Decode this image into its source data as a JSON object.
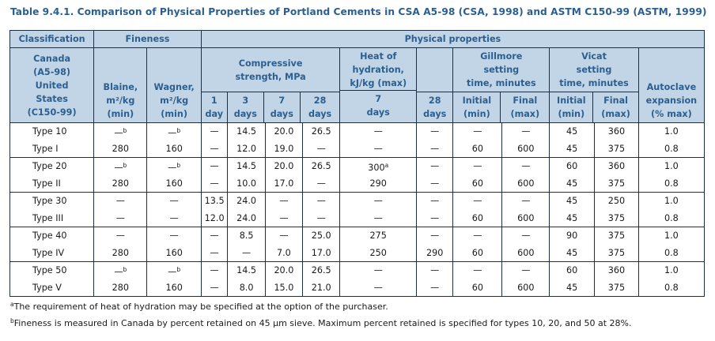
{
  "caption": "Table 9.4.1.  Comparison of Physical Properties of Portland Cements in CSA A5-98 (CSA, 1998) and ASTM C150-99 (ASTM, 1999)",
  "headers": {
    "classification": "Classification",
    "fineness": "Fineness",
    "physical_properties": "Physical properties",
    "canada": "Canada",
    "a598": "(A5-98)",
    "us": "United",
    "states": "States",
    "c15099": "(C150-99)",
    "blaine1": "Blaine,",
    "blaine2": "m²/kg",
    "blaine3": "(min)",
    "wagner1": "Wagner,",
    "wagner2": "m²/kg",
    "wagner3": "(min)",
    "comp1": "Compressive",
    "comp2": "strength, MPa",
    "d1n": "1",
    "d1u": "day",
    "d3n": "3",
    "d3u": "days",
    "d7n": "7",
    "d7u": "days",
    "d28n": "28",
    "d28u": "days",
    "heat1": "Heat of",
    "heat2": "hydration,",
    "heat3": "kJ/kg (max)",
    "heat7n": "7",
    "heat7u": "days",
    "heat28n": "28",
    "heat28u": "days",
    "gill1": "Gillmore",
    "gill2": "setting",
    "gill3": "time, minutes",
    "gill_initial": "Initial",
    "gill_initial_u": "(min)",
    "gill_final": "Final",
    "gill_final_u": "(max)",
    "vicat1": "Vicat",
    "vicat2": "setting",
    "vicat3": "time, minutes",
    "vicat_initial": "Initial",
    "vicat_initial_u": "(min)",
    "vicat_final": "Final",
    "vicat_final_u": "(max)",
    "auto1": "Autoclave",
    "auto2": "expansion",
    "auto3": "(% max)"
  },
  "rows": [
    {
      "type": "Type 10",
      "blaine": "—",
      "blaine_sup": "b",
      "wagner": "—",
      "wagner_sup": "b",
      "c1": "—",
      "c3": "14.5",
      "c7": "20.0",
      "c28": "26.5",
      "h7": "—",
      "h7_sup": "",
      "h28": "—",
      "gi": "—",
      "gf": "—",
      "vi": "45",
      "vf": "360",
      "ae": "1.0"
    },
    {
      "type": "Type I",
      "blaine": "280",
      "blaine_sup": "",
      "wagner": "160",
      "wagner_sup": "",
      "c1": "—",
      "c3": "12.0",
      "c7": "19.0",
      "c28": "—",
      "h7": "—",
      "h7_sup": "",
      "h28": "—",
      "gi": "60",
      "gf": "600",
      "vi": "45",
      "vf": "375",
      "ae": "0.8"
    },
    {
      "type": "Type 20",
      "blaine": "—",
      "blaine_sup": "b",
      "wagner": "—",
      "wagner_sup": "b",
      "c1": "—",
      "c3": "14.5",
      "c7": "20.0",
      "c28": "26.5",
      "h7": "300",
      "h7_sup": "a",
      "h28": "—",
      "gi": "—",
      "gf": "—",
      "vi": "60",
      "vf": "360",
      "ae": "1.0"
    },
    {
      "type": "Type II",
      "blaine": "280",
      "blaine_sup": "",
      "wagner": "160",
      "wagner_sup": "",
      "c1": "—",
      "c3": "10.0",
      "c7": "17.0",
      "c28": "—",
      "h7": "290",
      "h7_sup": "",
      "h28": "—",
      "gi": "60",
      "gf": "600",
      "vi": "45",
      "vf": "375",
      "ae": "0.8"
    },
    {
      "type": "Type 30",
      "blaine": "—",
      "blaine_sup": "",
      "wagner": "—",
      "wagner_sup": "",
      "c1": "13.5",
      "c3": "24.0",
      "c7": "—",
      "c28": "—",
      "h7": "—",
      "h7_sup": "",
      "h28": "—",
      "gi": "—",
      "gf": "—",
      "vi": "45",
      "vf": "250",
      "ae": "1.0"
    },
    {
      "type": "Type III",
      "blaine": "—",
      "blaine_sup": "",
      "wagner": "—",
      "wagner_sup": "",
      "c1": "12.0",
      "c3": "24.0",
      "c7": "—",
      "c28": "—",
      "h7": "—",
      "h7_sup": "",
      "h28": "—",
      "gi": "60",
      "gf": "600",
      "vi": "45",
      "vf": "375",
      "ae": "0.8"
    },
    {
      "type": "Type 40",
      "blaine": "—",
      "blaine_sup": "",
      "wagner": "—",
      "wagner_sup": "",
      "c1": "—",
      "c3": "8.5",
      "c7": "—",
      "c28": "25.0",
      "h7": "275",
      "h7_sup": "",
      "h28": "—",
      "gi": "—",
      "gf": "—",
      "vi": "90",
      "vf": "375",
      "ae": "1.0"
    },
    {
      "type": "Type IV",
      "blaine": "280",
      "blaine_sup": "",
      "wagner": "160",
      "wagner_sup": "",
      "c1": "—",
      "c3": "—",
      "c7": "7.0",
      "c28": "17.0",
      "h7": "250",
      "h7_sup": "",
      "h28": "290",
      "gi": "60",
      "gf": "600",
      "vi": "45",
      "vf": "375",
      "ae": "0.8"
    },
    {
      "type": "Type 50",
      "blaine": "—",
      "blaine_sup": "b",
      "wagner": "—",
      "wagner_sup": "b",
      "c1": "—",
      "c3": "14.5",
      "c7": "20.0",
      "c28": "26.5",
      "h7": "—",
      "h7_sup": "",
      "h28": "—",
      "gi": "—",
      "gf": "—",
      "vi": "60",
      "vf": "360",
      "ae": "1.0"
    },
    {
      "type": "Type V",
      "blaine": "280",
      "blaine_sup": "",
      "wagner": "160",
      "wagner_sup": "",
      "c1": "—",
      "c3": "8.0",
      "c7": "15.0",
      "c28": "21.0",
      "h7": "—",
      "h7_sup": "",
      "h28": "—",
      "gi": "60",
      "gf": "600",
      "vi": "45",
      "vf": "375",
      "ae": "0.8"
    }
  ],
  "footnotes": {
    "a_mark": "a",
    "a_text": "The requirement of heat of hydration may be specified at the option of the purchaser.",
    "b_mark": "b",
    "b_text": "Fineness is measured in Canada by percent retained on 45 µm sieve. Maximum percent retained is specified for types 10, 20, and 50 at 28%."
  }
}
